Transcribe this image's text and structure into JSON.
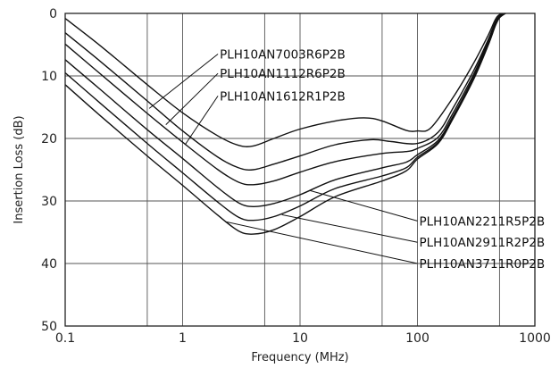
{
  "chart_data": {
    "type": "line",
    "title": "",
    "xlabel": "Frequency (MHz)",
    "ylabel": "Insertion Loss (dB)",
    "x_scale": "log",
    "xlim": [
      0.1,
      1000
    ],
    "ylim": [
      0,
      50
    ],
    "y_inverted": true,
    "grid": true,
    "x_ticks": [
      {
        "value": 0.1,
        "label": "0.1"
      },
      {
        "value": 1,
        "label": "1"
      },
      {
        "value": 10,
        "label": "10"
      },
      {
        "value": 100,
        "label": "100"
      },
      {
        "value": 1000,
        "label": "1000"
      }
    ],
    "x_minor_gridlines": [
      0.5,
      5,
      50,
      500
    ],
    "y_ticks": [
      {
        "value": 0,
        "label": "0"
      },
      {
        "value": 10,
        "label": "10"
      },
      {
        "value": 20,
        "label": "20"
      },
      {
        "value": 30,
        "label": "30"
      },
      {
        "value": 40,
        "label": "40"
      },
      {
        "value": 50,
        "label": "50"
      }
    ],
    "series": [
      {
        "name": "PLH10AN7003R6P2B",
        "points": [
          [
            0.1,
            0.8
          ],
          [
            0.2,
            5.2
          ],
          [
            0.5,
            11.4
          ],
          [
            1,
            15.9
          ],
          [
            2,
            19.6
          ],
          [
            3,
            21.1
          ],
          [
            4,
            21.2
          ],
          [
            6,
            20.0
          ],
          [
            10,
            18.5
          ],
          [
            20,
            17.2
          ],
          [
            35,
            16.7
          ],
          [
            50,
            17.2
          ],
          [
            80,
            18.7
          ],
          [
            100,
            18.8
          ],
          [
            130,
            18.3
          ],
          [
            200,
            13.5
          ],
          [
            300,
            8.0
          ],
          [
            400,
            3.5
          ],
          [
            460,
            1.0
          ],
          [
            500,
            0.2
          ],
          [
            560,
            0.0
          ]
        ]
      },
      {
        "name": "PLH10AN1112R6P2B",
        "points": [
          [
            0.1,
            3.1
          ],
          [
            0.2,
            7.7
          ],
          [
            0.5,
            14.0
          ],
          [
            1,
            18.8
          ],
          [
            2,
            23.0
          ],
          [
            3,
            24.7
          ],
          [
            4,
            25.0
          ],
          [
            6,
            24.1
          ],
          [
            10,
            22.8
          ],
          [
            20,
            21.0
          ],
          [
            40,
            20.2
          ],
          [
            60,
            20.5
          ],
          [
            100,
            20.8
          ],
          [
            150,
            19.0
          ],
          [
            200,
            15.2
          ],
          [
            300,
            9.2
          ],
          [
            400,
            4.2
          ],
          [
            460,
            1.4
          ],
          [
            500,
            0.4
          ],
          [
            560,
            0.0
          ]
        ]
      },
      {
        "name": "PLH10AN1612R1P2B",
        "points": [
          [
            0.1,
            4.9
          ],
          [
            0.2,
            9.7
          ],
          [
            0.5,
            16.0
          ],
          [
            1,
            20.6
          ],
          [
            2,
            25.0
          ],
          [
            3,
            27.0
          ],
          [
            4,
            27.4
          ],
          [
            6,
            26.8
          ],
          [
            10,
            25.4
          ],
          [
            20,
            23.7
          ],
          [
            50,
            22.4
          ],
          [
            80,
            22.1
          ],
          [
            100,
            21.6
          ],
          [
            150,
            19.8
          ],
          [
            200,
            16.0
          ],
          [
            300,
            9.8
          ],
          [
            400,
            4.5
          ],
          [
            460,
            1.6
          ],
          [
            500,
            0.5
          ],
          [
            560,
            0.0
          ]
        ]
      },
      {
        "name": "PLH10AN2211R5P2B",
        "points": [
          [
            0.1,
            7.4
          ],
          [
            0.2,
            12.2
          ],
          [
            0.5,
            18.6
          ],
          [
            1,
            23.2
          ],
          [
            2,
            27.9
          ],
          [
            3,
            30.3
          ],
          [
            4,
            30.9
          ],
          [
            6,
            30.4
          ],
          [
            10,
            29.0
          ],
          [
            20,
            26.6
          ],
          [
            50,
            24.7
          ],
          [
            80,
            23.8
          ],
          [
            100,
            22.6
          ],
          [
            150,
            20.3
          ],
          [
            200,
            16.5
          ],
          [
            300,
            10.2
          ],
          [
            400,
            4.8
          ],
          [
            460,
            1.8
          ],
          [
            500,
            0.6
          ],
          [
            560,
            0.0
          ]
        ]
      },
      {
        "name": "PLH10AN2911R2P2B",
        "points": [
          [
            0.1,
            9.5
          ],
          [
            0.2,
            14.4
          ],
          [
            0.5,
            20.8
          ],
          [
            1,
            25.5
          ],
          [
            2,
            30.2
          ],
          [
            3,
            32.6
          ],
          [
            4,
            33.1
          ],
          [
            6,
            32.5
          ],
          [
            10,
            30.8
          ],
          [
            20,
            28.0
          ],
          [
            50,
            26.0
          ],
          [
            80,
            24.7
          ],
          [
            100,
            23.0
          ],
          [
            150,
            20.6
          ],
          [
            200,
            16.7
          ],
          [
            300,
            10.4
          ],
          [
            400,
            5.0
          ],
          [
            460,
            1.9
          ],
          [
            500,
            0.6
          ],
          [
            560,
            0.0
          ]
        ]
      },
      {
        "name": "PLH10AN3711R0P2B",
        "points": [
          [
            0.1,
            11.4
          ],
          [
            0.2,
            16.4
          ],
          [
            0.5,
            22.8
          ],
          [
            1,
            27.5
          ],
          [
            2,
            32.3
          ],
          [
            3,
            34.8
          ],
          [
            4,
            35.3
          ],
          [
            6,
            34.6
          ],
          [
            10,
            32.5
          ],
          [
            20,
            29.3
          ],
          [
            50,
            26.8
          ],
          [
            80,
            25.2
          ],
          [
            100,
            23.3
          ],
          [
            150,
            20.8
          ],
          [
            200,
            16.9
          ],
          [
            300,
            10.6
          ],
          [
            400,
            5.1
          ],
          [
            460,
            2.0
          ],
          [
            500,
            0.7
          ],
          [
            560,
            0.0
          ]
        ]
      }
    ],
    "annotations": [
      {
        "label": "PLH10AN7003R6P2B",
        "series": 0,
        "at": [
          0.52,
          15.2
        ],
        "text_at": [
          2.0,
          6.5
        ]
      },
      {
        "label": "PLH10AN1112R6P2B",
        "series": 1,
        "at": [
          0.72,
          17.8
        ],
        "text_at": [
          2.0,
          9.6
        ]
      },
      {
        "label": "PLH10AN1612R1P2B",
        "series": 2,
        "at": [
          1.05,
          21.0
        ],
        "text_at": [
          2.0,
          13.2
        ]
      },
      {
        "label": "PLH10AN2211R5P2B",
        "series": 3,
        "at": [
          12.0,
          28.3
        ],
        "text_at": [
          100,
          33.2
        ]
      },
      {
        "label": "PLH10AN2911R2P2B",
        "series": 4,
        "at": [
          7.0,
          32.2
        ],
        "text_at": [
          100,
          36.6
        ]
      },
      {
        "label": "PLH10AN3711R0P2B",
        "series": 5,
        "at": [
          2.3,
          33.3
        ],
        "text_at": [
          100,
          40.0
        ]
      }
    ]
  }
}
